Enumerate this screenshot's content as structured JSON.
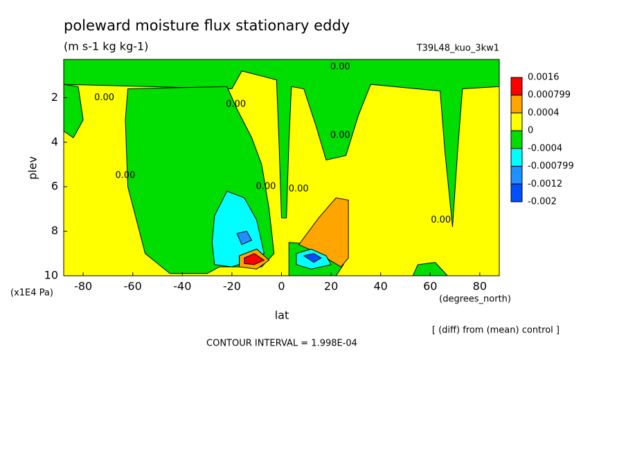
{
  "chart_data": {
    "type": "contour",
    "title": "poleward moisture flux stationary eddy",
    "subtitle": "(m s-1 kg kg-1)",
    "run_label": "T39L48_kuo_3kw1",
    "x_label": "lat",
    "x_unit": "(degrees_north)",
    "y_label": "plev",
    "y_unit": "(x1E4 Pa)",
    "xlim": [
      -87.86,
      87.86
    ],
    "ylim": [
      10,
      0.28
    ],
    "xticks": [
      -80,
      -60,
      -40,
      -20,
      0,
      20,
      40,
      60,
      80
    ],
    "yticks": [
      2,
      4,
      6,
      8,
      10
    ],
    "background_color": "#ffff00",
    "colorbar": {
      "levels": [
        0.0016,
        0.000799,
        0.0004,
        0,
        -0.0004,
        -0.000799,
        -0.0012,
        -0.002
      ],
      "colors": [
        "#ff0000",
        "#ffa500",
        "#ffff00",
        "#00dd00",
        "#00ffff",
        "#1e90ff",
        "#0050ff"
      ]
    },
    "regions": [
      {
        "color": "#00dd00",
        "lat": [
          -87.86,
          87.86,
          87.86,
          73,
          71,
          69,
          66,
          64,
          36,
          31,
          26,
          18,
          14,
          9,
          4,
          3,
          2,
          0,
          -1,
          -2,
          -16,
          -20,
          -87.86
        ],
        "plev": [
          0.28,
          0.28,
          1.5,
          1.6,
          4.5,
          7.8,
          4.5,
          1.7,
          1.4,
          2.8,
          4.6,
          4.8,
          3.3,
          1.6,
          1.5,
          4,
          7.4,
          7.4,
          4,
          1.2,
          0.8,
          1.6,
          1.4
        ]
      },
      {
        "color": "#00dd00",
        "lat": [
          -87.86,
          -82,
          -80,
          -84,
          -87.86
        ],
        "plev": [
          1.4,
          1.5,
          3,
          3.8,
          3.5
        ]
      },
      {
        "color": "#00dd00",
        "lat": [
          -62,
          -22,
          -18,
          -12,
          -8,
          -5,
          -3,
          -8,
          -25,
          -30,
          -45,
          -55,
          -62,
          -63
        ],
        "plev": [
          1.6,
          1.5,
          2.5,
          3.8,
          5,
          7,
          9,
          9.6,
          9.6,
          9.9,
          9.9,
          9,
          6,
          3
        ]
      },
      {
        "color": "#00dd00",
        "lat": [
          53,
          55,
          62,
          67
        ],
        "plev": [
          10,
          9.5,
          9.4,
          10
        ]
      },
      {
        "color": "#00dd00",
        "lat": [
          3,
          15,
          25,
          22,
          3
        ],
        "plev": [
          8.5,
          8.6,
          9.5,
          10,
          10
        ]
      },
      {
        "color": "#00ffff",
        "lat": [
          -27,
          -22,
          -15,
          -10,
          -7,
          -12,
          -20,
          -27,
          -28
        ],
        "plev": [
          7.3,
          6.2,
          6.5,
          7.5,
          9,
          9.3,
          9.6,
          9.5,
          8.5
        ]
      },
      {
        "color": "#1e90ff",
        "lat": [
          -18,
          -14,
          -12,
          -16
        ],
        "plev": [
          8.1,
          8.0,
          8.4,
          8.6
        ]
      },
      {
        "color": "#ffa500",
        "lat": [
          -17,
          -10,
          -5,
          -10,
          -17
        ],
        "plev": [
          9.1,
          8.8,
          9.3,
          9.7,
          9.6
        ]
      },
      {
        "color": "#ff0000",
        "lat": [
          -15,
          -11,
          -7,
          -11,
          -15
        ],
        "plev": [
          9.2,
          9.0,
          9.3,
          9.5,
          9.45
        ]
      },
      {
        "color": "#ffa500",
        "lat": [
          7,
          15,
          22,
          27,
          27,
          24,
          15
        ],
        "plev": [
          8.6,
          7.4,
          6.5,
          6.6,
          9.2,
          9.6,
          9.0
        ]
      },
      {
        "color": "#00ffff",
        "lat": [
          6,
          12,
          18,
          20,
          12,
          6
        ],
        "plev": [
          9.0,
          8.8,
          9.1,
          9.5,
          9.7,
          9.5
        ]
      },
      {
        "color": "#0050ff",
        "lat": [
          9,
          13,
          16,
          13
        ],
        "plev": [
          9.1,
          9.0,
          9.2,
          9.4
        ]
      }
    ],
    "contour_labels": [
      {
        "text": "0.00",
        "lat": -71.5,
        "plev": 2.0
      },
      {
        "text": "0.00",
        "lat": 23.7,
        "plev": 0.62
      },
      {
        "text": "0.00",
        "lat": -18.4,
        "plev": 2.3
      },
      {
        "text": "0.00",
        "lat": -63,
        "plev": 5.5
      },
      {
        "text": "0.00",
        "lat": -6.3,
        "plev": 6.0
      },
      {
        "text": "0.00",
        "lat": 6.9,
        "plev": 6.1
      },
      {
        "text": "0.00",
        "lat": 23.7,
        "plev": 3.7
      },
      {
        "text": "0.00",
        "lat": 64.3,
        "plev": 7.5
      }
    ],
    "note": "[ (diff) from (mean) control ]",
    "contour_interval": "CONTOUR INTERVAL = 1.998E-04"
  }
}
